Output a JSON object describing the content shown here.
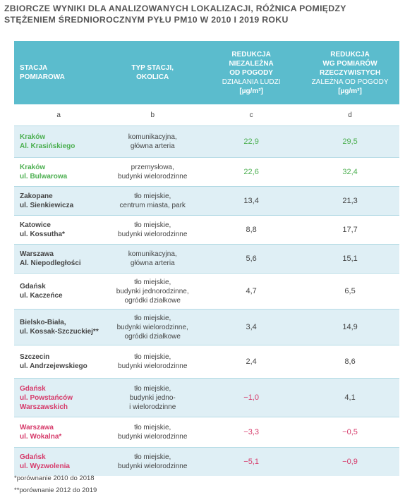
{
  "title": [
    "ZBIORCZE WYNIKI DLA ANALIZOWANYCH LOKALIZACJI, RÓŻNICA POMIĘDZY",
    "STĘŻENIEM ŚREDNIOROCZNYM PYŁU PM10 W 2010 I 2019 ROKU"
  ],
  "table": {
    "headers": [
      {
        "lines": [
          "STACJA",
          "POMIAROWA"
        ]
      },
      {
        "lines": [
          "TYP STACJI,",
          "OKOLICA"
        ]
      },
      {
        "lines": [
          "REDUKCJA",
          "NIEZALEŻNA",
          "OD POGODY"
        ],
        "sub": "DZIAŁANIA LUDZI",
        "unit": "[µg/m³]"
      },
      {
        "lines": [
          "REDUKCJA",
          "WG POMIARÓW",
          "RZECZYWISTYCH"
        ],
        "sub": "ZALEŻNA OD POGODY",
        "unit": "[µg/m³]"
      }
    ],
    "letters": [
      "a",
      "b",
      "c",
      "d"
    ],
    "rows": [
      {
        "station": [
          "Kraków",
          "Al. Krasińskiego"
        ],
        "type": [
          "komunikacyjna,",
          "główna arteria"
        ],
        "c": "22,9",
        "d": "29,5",
        "station_color": "#4caf50",
        "c_color": "#4caf50",
        "d_color": "#4caf50"
      },
      {
        "station": [
          "Kraków",
          "ul. Bulwarowa"
        ],
        "type": [
          "przemysłowa,",
          "budynki wielorodzinne"
        ],
        "c": "22,6",
        "d": "32,4",
        "station_color": "#4caf50",
        "c_color": "#4caf50",
        "d_color": "#4caf50"
      },
      {
        "station": [
          "Zakopane",
          "ul. Sienkiewicza"
        ],
        "type": [
          "tło miejskie,",
          "centrum miasta, park"
        ],
        "c": "13,4",
        "d": "21,3",
        "station_color": "#444444",
        "c_color": "#444444",
        "d_color": "#444444"
      },
      {
        "station": [
          "Katowice",
          "ul. Kossutha*"
        ],
        "type": [
          "tło miejskie,",
          "budynki wielorodzinne"
        ],
        "c": "8,8",
        "d": "17,7",
        "station_color": "#444444",
        "c_color": "#444444",
        "d_color": "#444444"
      },
      {
        "station": [
          "Warszawa",
          "Al. Niepodległości"
        ],
        "type": [
          "komunikacyjna,",
          "główna arteria"
        ],
        "c": "5,6",
        "d": "15,1",
        "station_color": "#444444",
        "c_color": "#444444",
        "d_color": "#444444"
      },
      {
        "station": [
          "Gdańsk",
          "ul. Kaczeńce"
        ],
        "type": [
          "tło miejskie,",
          "budynki jednorodzinne,",
          "ogródki działkowe"
        ],
        "c": "4,7",
        "d": "6,5",
        "station_color": "#444444",
        "c_color": "#444444",
        "d_color": "#444444"
      },
      {
        "station": [
          "Bielsko-Biała,",
          "ul. Kossak-Szczuckiej**"
        ],
        "type": [
          "tło miejskie,",
          "budynki wielorodzinne,",
          "ogródki działkowe"
        ],
        "c": "3,4",
        "d": "14,9",
        "station_color": "#444444",
        "c_color": "#444444",
        "d_color": "#444444"
      },
      {
        "station": [
          "Szczecin",
          "ul. Andrzejewskiego"
        ],
        "type": [
          "tło miejskie,",
          "budynki wielorodzinne"
        ],
        "c": "2,4",
        "d": "8,6",
        "station_color": "#444444",
        "c_color": "#444444",
        "d_color": "#444444"
      },
      {
        "station": [
          "Gdańsk",
          "ul. Powstańców",
          "Warszawskich"
        ],
        "type": [
          "tło miejskie,",
          "budynki jedno-",
          "i wielorodzinne"
        ],
        "c": "−1,0",
        "d": "4,1",
        "station_color": "#d63a6a",
        "c_color": "#d63a6a",
        "d_color": "#444444"
      },
      {
        "station": [
          "Warszawa",
          "ul. Wokalna*"
        ],
        "type": [
          "tło miejskie,",
          "budynki wielorodzinne"
        ],
        "c": "−3,3",
        "d": "−0,5",
        "station_color": "#d63a6a",
        "c_color": "#d63a6a",
        "d_color": "#d63a6a"
      },
      {
        "station": [
          "Gdańsk",
          "ul. Wyzwolenia"
        ],
        "type": [
          "tło miejskie,",
          "budynki wielorodzinne"
        ],
        "c": "−5,1",
        "d": "−0,9",
        "station_color": "#d63a6a",
        "c_color": "#d63a6a",
        "d_color": "#d63a6a"
      }
    ]
  },
  "footnotes": [
    "*porównanie 2010 do 2018",
    "**porównanie 2012 do 2019"
  ]
}
